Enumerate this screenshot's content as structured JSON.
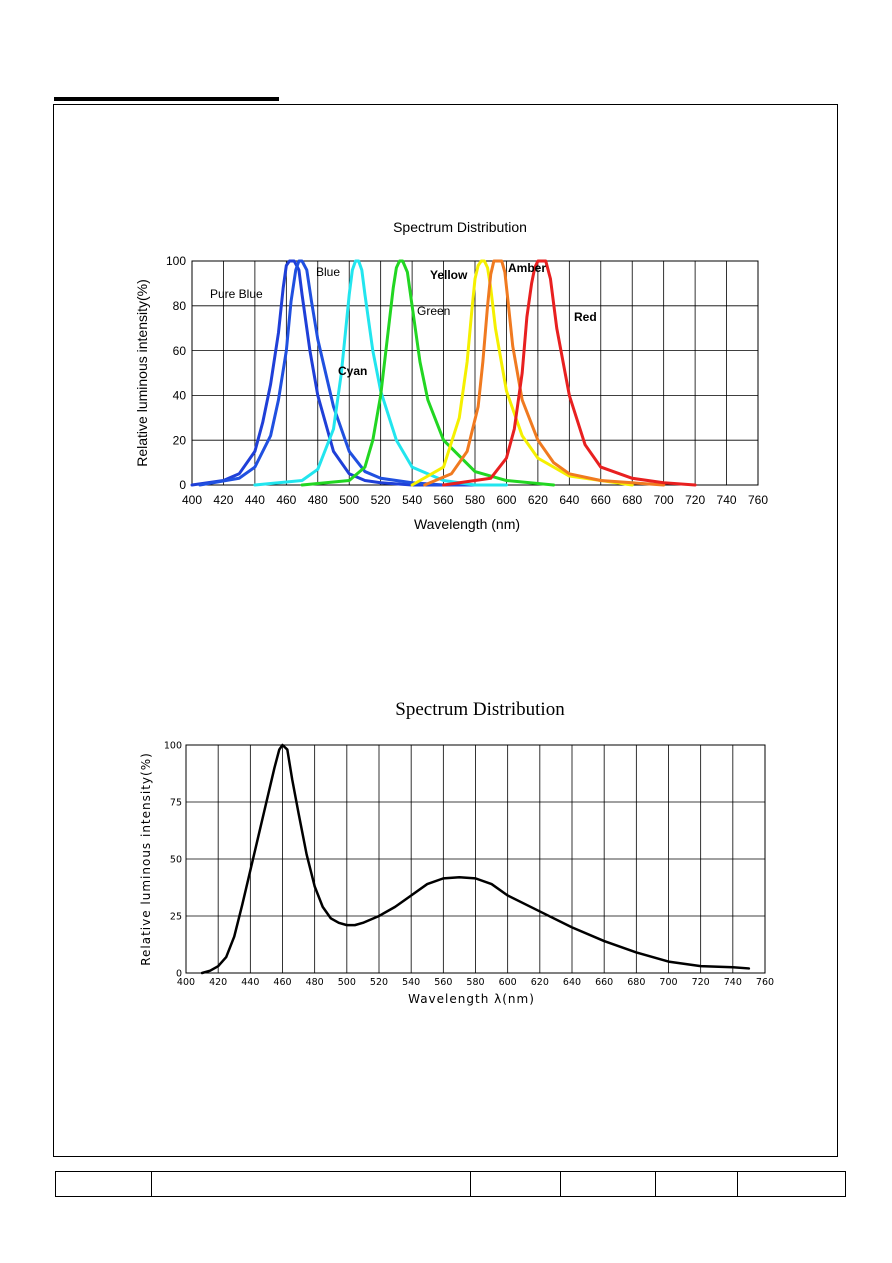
{
  "chart_data": [
    {
      "type": "line",
      "title": "Spectrum Distribution",
      "xlabel": "Wavelength  (nm)",
      "ylabel": "Relative luminous intensity(%)",
      "xlim": [
        400,
        760
      ],
      "ylim": [
        0,
        100
      ],
      "x_ticks": [
        "400",
        "420",
        "440",
        "460",
        "480",
        "500",
        "520",
        "540",
        "560",
        "580",
        "600",
        "620",
        "640",
        "660",
        "680",
        "700",
        "720",
        "740",
        "760"
      ],
      "y_ticks": [
        "0",
        "20",
        "40",
        "60",
        "80",
        "100"
      ],
      "grid": true,
      "series": [
        {
          "name": "Pure Blue",
          "color": "#1f3fd8",
          "x": [
            400,
            420,
            430,
            440,
            445,
            450,
            455,
            458,
            460,
            462,
            465,
            468,
            470,
            475,
            480,
            490,
            500,
            510,
            520,
            540,
            560
          ],
          "y": [
            0,
            2,
            5,
            15,
            28,
            45,
            68,
            88,
            98,
            100,
            100,
            96,
            85,
            60,
            40,
            15,
            5,
            2,
            1,
            0,
            0
          ]
        },
        {
          "name": "Blue",
          "color": "#2050e0",
          "x": [
            405,
            430,
            440,
            450,
            455,
            460,
            463,
            466,
            468,
            470,
            473,
            476,
            480,
            490,
            500,
            510,
            520,
            540,
            560,
            580
          ],
          "y": [
            0,
            3,
            8,
            22,
            38,
            60,
            82,
            96,
            100,
            100,
            96,
            82,
            65,
            35,
            15,
            6,
            3,
            1,
            0,
            0
          ]
        },
        {
          "name": "Cyan",
          "color": "#22e5ee",
          "x": [
            440,
            470,
            480,
            490,
            495,
            500,
            502,
            504,
            506,
            508,
            510,
            515,
            520,
            530,
            540,
            560,
            580,
            600
          ],
          "y": [
            0,
            2,
            7,
            25,
            50,
            85,
            96,
            100,
            100,
            96,
            85,
            60,
            42,
            20,
            8,
            2,
            0,
            0
          ]
        },
        {
          "name": "Green",
          "color": "#22d622",
          "x": [
            470,
            500,
            510,
            515,
            520,
            525,
            528,
            530,
            532,
            534,
            537,
            540,
            545,
            550,
            560,
            580,
            600,
            630
          ],
          "y": [
            0,
            2,
            8,
            20,
            40,
            70,
            88,
            97,
            100,
            100,
            95,
            80,
            55,
            38,
            20,
            6,
            2,
            0
          ]
        },
        {
          "name": "Yellow",
          "color": "#f5f000",
          "x": [
            540,
            560,
            570,
            575,
            578,
            580,
            582,
            584,
            586,
            588,
            590,
            593,
            600,
            610,
            620,
            640,
            680
          ],
          "y": [
            0,
            8,
            30,
            55,
            78,
            92,
            98,
            100,
            100,
            97,
            88,
            70,
            42,
            22,
            12,
            4,
            0
          ]
        },
        {
          "name": "Amber",
          "color": "#f07a20",
          "x": [
            548,
            565,
            575,
            582,
            585,
            588,
            590,
            592,
            594,
            597,
            599,
            601,
            604,
            610,
            620,
            630,
            640,
            660,
            680,
            700
          ],
          "y": [
            0,
            5,
            15,
            35,
            55,
            80,
            94,
            100,
            100,
            100,
            95,
            82,
            62,
            38,
            20,
            10,
            5,
            2,
            1,
            0
          ]
        },
        {
          "name": "Red",
          "color": "#e82020",
          "x": [
            560,
            590,
            600,
            605,
            610,
            613,
            616,
            618,
            620,
            622,
            625,
            628,
            632,
            640,
            650,
            660,
            680,
            700,
            720
          ],
          "y": [
            0,
            3,
            12,
            25,
            50,
            75,
            90,
            97,
            100,
            100,
            100,
            92,
            70,
            40,
            18,
            8,
            3,
            1,
            0
          ]
        }
      ],
      "annotations": [
        "Pure Blue",
        "Blue",
        "Cyan",
        "Green",
        "Yellow",
        "Amber",
        "Red"
      ]
    },
    {
      "type": "line",
      "title": "Spectrum Distribution",
      "xlabel": "Wavelength  λ(nm)",
      "ylabel": "Relative luminous intensity(%)",
      "xlim": [
        400,
        760
      ],
      "ylim": [
        0,
        100
      ],
      "x_ticks": [
        "400",
        "420",
        "440",
        "460",
        "480",
        "500",
        "520",
        "540",
        "560",
        "580",
        "600",
        "620",
        "640",
        "660",
        "680",
        "700",
        "720",
        "740",
        "760"
      ],
      "y_ticks": [
        "0",
        "25",
        "50",
        "75",
        "100"
      ],
      "grid": true,
      "series": [
        {
          "name": "",
          "color": "#000000",
          "x": [
            410,
            415,
            420,
            425,
            430,
            435,
            440,
            445,
            450,
            455,
            458,
            460,
            463,
            466,
            470,
            475,
            480,
            485,
            490,
            495,
            500,
            505,
            510,
            520,
            530,
            540,
            550,
            560,
            570,
            580,
            590,
            600,
            620,
            640,
            660,
            680,
            700,
            720,
            740,
            750
          ],
          "y": [
            0,
            1,
            3,
            7,
            16,
            30,
            45,
            60,
            75,
            90,
            98,
            100,
            98,
            85,
            70,
            52,
            38,
            29,
            24,
            22,
            21,
            21,
            22,
            25,
            29,
            34,
            39,
            41.5,
            42,
            41.5,
            39,
            34,
            27,
            20,
            14,
            9,
            5,
            3,
            2.5,
            2
          ]
        }
      ]
    }
  ]
}
